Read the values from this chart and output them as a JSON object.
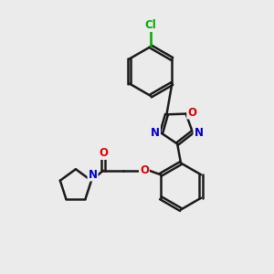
{
  "background_color": "#ebebeb",
  "bond_color": "#1a1a1a",
  "atom_colors": {
    "O": "#dd0000",
    "N": "#0000cc",
    "Cl": "#00aa00",
    "C": "#1a1a1a"
  },
  "bond_width": 1.8,
  "figsize": [
    3.0,
    3.0
  ],
  "dpi": 100
}
